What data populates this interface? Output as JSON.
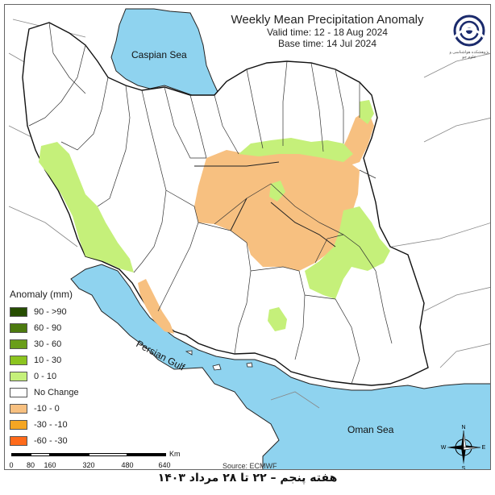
{
  "title": {
    "main": "Weekly Mean Precipitation Anomaly",
    "valid": "Valid time: 12 - 18 Aug 2024",
    "base": "Base time: 14 Jul 2024"
  },
  "logo_text": "پژوهشکده هواشناسی و علوم جو",
  "seas": {
    "caspian": "Caspian Sea",
    "persian_gulf": "Persian Gulf",
    "oman": "Oman Sea"
  },
  "legend": {
    "title": "Anomaly (mm)",
    "items": [
      {
        "label": "90 - >90",
        "color": "#264d00"
      },
      {
        "label": "60 - 90",
        "color": "#4c7a0f"
      },
      {
        "label": "30 - 60",
        "color": "#6a9e1a"
      },
      {
        "label": "10 - 30",
        "color": "#8cc41f"
      },
      {
        "label": "0 - 10",
        "color": "#c5f07a"
      },
      {
        "label": "No Change",
        "color": "#ffffff"
      },
      {
        "label": "-10 - 0",
        "color": "#f7c080"
      },
      {
        "label": "-30 - -10",
        "color": "#f5a623"
      },
      {
        "label": "-60 - -30",
        "color": "#ff6a1a"
      }
    ]
  },
  "scale": {
    "ticks": [
      "0",
      "80",
      "160",
      "320",
      "480",
      "640"
    ],
    "unit": "Km"
  },
  "source": "Source: ECMWF",
  "compass": {
    "n": "N",
    "s": "S",
    "e": "E",
    "w": "W"
  },
  "footer": "هفته پنجم – ۲۲ تا ۲۸ مرداد ۱۴۰۳",
  "colors": {
    "water": "#8fd3ef",
    "land": "#ffffff",
    "border": "#222222",
    "dry": "#f7c080",
    "wet": "#c5f07a"
  }
}
